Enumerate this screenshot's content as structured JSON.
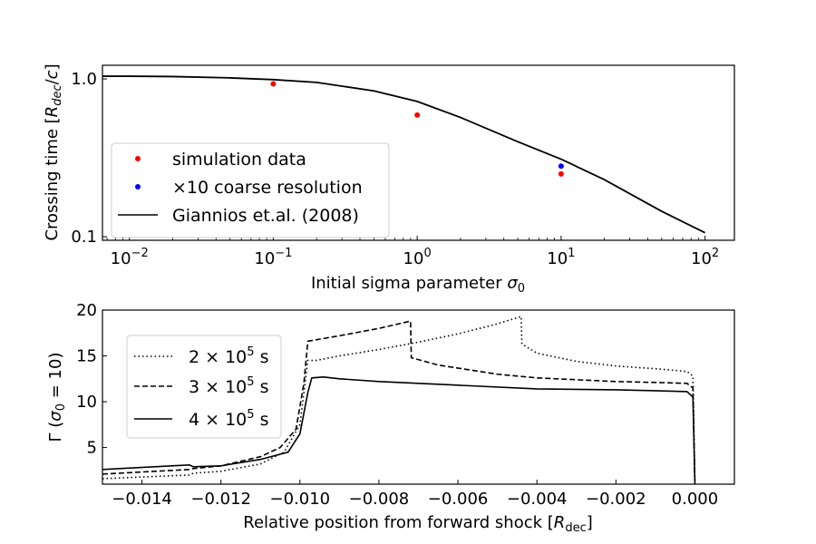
{
  "chart_data": [
    {
      "type": "scatter",
      "xscale": "log",
      "yscale": "log",
      "xlim": [
        0.0065,
        160
      ],
      "ylim": [
        0.095,
        1.22
      ],
      "xlabel": "Initial sigma parameter σ0",
      "ylabel": "Crossing time [Rdec/c]",
      "xticks": [
        {
          "value": 0.01,
          "base": "10",
          "exp": "−2"
        },
        {
          "value": 0.1,
          "base": "10",
          "exp": "−1"
        },
        {
          "value": 1,
          "base": "10",
          "exp": "0"
        },
        {
          "value": 10,
          "base": "10",
          "exp": "1"
        },
        {
          "value": 100,
          "base": "10",
          "exp": "2"
        }
      ],
      "yticks": [
        {
          "value": 0.1,
          "label": "0.1"
        },
        {
          "value": 1.0,
          "label": "1.0"
        }
      ],
      "series": [
        {
          "name": "simulation data",
          "kind": "points",
          "color": "#ff0000",
          "x": [
            0.1,
            1,
            10
          ],
          "y": [
            0.93,
            0.59,
            0.25
          ]
        },
        {
          "name": "×10 coarse resolution",
          "kind": "points",
          "color": "#0000ff",
          "x": [
            10
          ],
          "y": [
            0.28
          ]
        },
        {
          "name": "Giannios et.al. (2008)",
          "kind": "line",
          "color": "#000000",
          "x": [
            0.0065,
            0.01,
            0.02,
            0.05,
            0.1,
            0.2,
            0.5,
            1,
            2,
            5,
            10,
            20,
            50,
            100
          ],
          "y": [
            1.04,
            1.04,
            1.035,
            1.015,
            0.99,
            0.95,
            0.84,
            0.72,
            0.57,
            0.4,
            0.31,
            0.23,
            0.145,
            0.106
          ]
        }
      ],
      "legend": {
        "position": "lower-left",
        "entries": [
          "simulation data",
          "×10 coarse resolution",
          "Giannios et.al. (2008)"
        ]
      }
    },
    {
      "type": "line",
      "xlim": [
        -0.015,
        0.001
      ],
      "ylim": [
        1,
        20
      ],
      "xlabel": "Relative position from forward shock [Rdec]",
      "ylabel": "Γ (σ0 = 10)",
      "xticks": [
        {
          "value": -0.014,
          "label": "−0.014"
        },
        {
          "value": -0.012,
          "label": "−0.012"
        },
        {
          "value": -0.01,
          "label": "−0.010"
        },
        {
          "value": -0.008,
          "label": "−0.008"
        },
        {
          "value": -0.006,
          "label": "−0.006"
        },
        {
          "value": -0.004,
          "label": "−0.004"
        },
        {
          "value": -0.002,
          "label": "−0.002"
        },
        {
          "value": 0.0,
          "label": "0.000"
        }
      ],
      "yticks": [
        {
          "value": 5,
          "label": "5"
        },
        {
          "value": 10,
          "label": "10"
        },
        {
          "value": 15,
          "label": "15"
        },
        {
          "value": 20,
          "label": "20"
        }
      ],
      "series": [
        {
          "name": "2×10^5 s",
          "time_label": "2",
          "style": "dotted",
          "x": [
            -0.015,
            -0.0128,
            -0.0127,
            -0.012,
            -0.011,
            -0.0104,
            -0.01,
            -0.0098,
            -0.0096,
            -0.009,
            -0.008,
            -0.007,
            -0.006,
            -0.005,
            -0.0044,
            -0.00438,
            -0.004,
            -0.003,
            -0.002,
            -0.001,
            -0.0002,
            -5e-05,
            0.0
          ],
          "y": [
            1.6,
            2.0,
            2.2,
            2.4,
            3.2,
            4.5,
            7.5,
            14.5,
            14.5,
            15.0,
            15.7,
            16.5,
            17.4,
            18.5,
            19.3,
            16.3,
            15.3,
            14.4,
            13.9,
            13.6,
            13.3,
            12.8,
            1.0
          ]
        },
        {
          "name": "3×10^5 s",
          "time_label": "3",
          "style": "dashed",
          "x": [
            -0.015,
            -0.0128,
            -0.0127,
            -0.012,
            -0.011,
            -0.0105,
            -0.0101,
            -0.0099,
            -0.0098,
            -0.009,
            -0.008,
            -0.0072,
            -0.00718,
            -0.0065,
            -0.005,
            -0.004,
            -0.003,
            -0.002,
            -0.001,
            -0.0002,
            -5e-05,
            0.0
          ],
          "y": [
            2.1,
            2.6,
            2.7,
            3.0,
            4.0,
            5.0,
            7.0,
            12.0,
            16.6,
            17.2,
            18.0,
            18.8,
            14.8,
            14.0,
            13.0,
            12.6,
            12.4,
            12.2,
            12.1,
            12.0,
            11.5,
            1.0
          ]
        },
        {
          "name": "4×10^5 s",
          "time_label": "4",
          "style": "solid",
          "x": [
            -0.015,
            -0.0128,
            -0.0127,
            -0.012,
            -0.011,
            -0.0103,
            -0.01,
            -0.0098,
            -0.0097,
            -0.0094,
            -0.009,
            -0.008,
            -0.006,
            -0.004,
            -0.002,
            -0.001,
            -0.0002,
            -5e-05,
            0.0
          ],
          "y": [
            2.6,
            3.1,
            2.9,
            3.0,
            3.7,
            4.5,
            6.5,
            11.0,
            12.6,
            12.7,
            12.5,
            12.2,
            11.8,
            11.4,
            11.3,
            11.2,
            11.1,
            10.5,
            1.0
          ]
        }
      ],
      "legend": {
        "position": "upper-left",
        "entries": [
          "2×10^5 s",
          "3×10^5 s",
          "4×10^5 s"
        ]
      }
    }
  ]
}
